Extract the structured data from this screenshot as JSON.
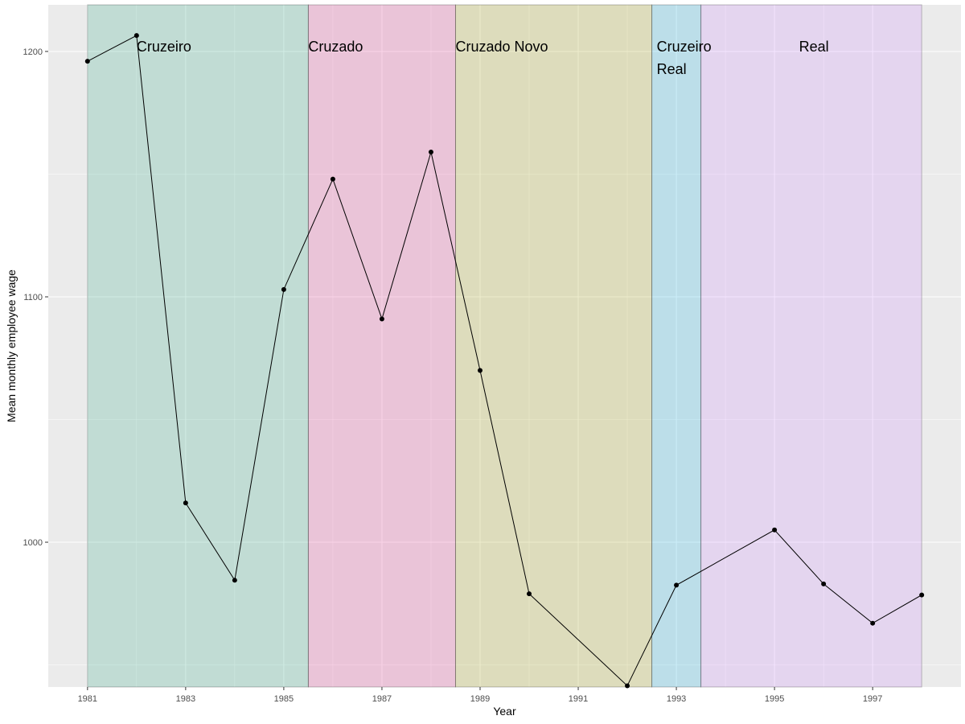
{
  "chart_data": {
    "type": "line",
    "xlabel": "Year",
    "ylabel": "Mean monthly employee wage",
    "xlim": [
      1980.2,
      1998.8
    ],
    "ylim": [
      941,
      1219
    ],
    "x_ticks": [
      1981,
      1983,
      1985,
      1987,
      1989,
      1991,
      1993,
      1995,
      1997
    ],
    "y_ticks": [
      1000,
      1100,
      1200
    ],
    "grid": true,
    "series": [
      {
        "x": [
          1981,
          1982,
          1983,
          1984,
          1985,
          1986,
          1987,
          1988,
          1989,
          1990,
          1992,
          1993,
          1995,
          1996,
          1997,
          1998
        ],
        "values": [
          1196,
          1206.5,
          1016,
          984.5,
          1103,
          1148,
          1091,
          1159,
          1070,
          979,
          941.5,
          982.5,
          1005,
          983,
          967,
          978.5
        ]
      }
    ],
    "bands": [
      {
        "label_lines": [
          "Cruzeiro"
        ],
        "start": 1981,
        "end": 1985.5,
        "color": "#1b9e77",
        "label_x": 1982,
        "label_y": 1200
      },
      {
        "label_lines": [
          "Cruzado"
        ],
        "start": 1985.5,
        "end": 1988.5,
        "color": "#e7298a",
        "label_x": 1985.5,
        "label_y": 1200
      },
      {
        "label_lines": [
          "Cruzado Novo"
        ],
        "start": 1988.5,
        "end": 1992.5,
        "color": "#a6a000",
        "label_x": 1988.5,
        "label_y": 1200
      },
      {
        "label_lines": [
          "Cruzeiro",
          "Real"
        ],
        "start": 1992.5,
        "end": 1993.5,
        "color": "#00a9e0",
        "label_x": 1992.6,
        "label_y": 1200
      },
      {
        "label_lines": [
          "Real"
        ],
        "start": 1993.5,
        "end": 1998,
        "color": "#c77cff",
        "label_x": 1995.5,
        "label_y": 1200
      }
    ]
  }
}
